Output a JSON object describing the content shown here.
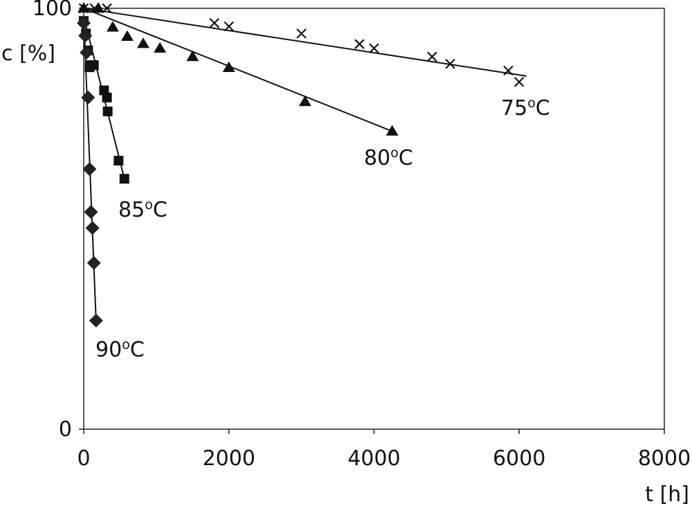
{
  "chart_data": {
    "type": "scatter",
    "title": "",
    "xlabel": "t [h]",
    "ylabel": "c [%]",
    "xlim": [
      0,
      8000
    ],
    "ylim": [
      0,
      100
    ],
    "x_ticks": [
      0,
      2000,
      4000,
      6000,
      8000
    ],
    "x_tick_labels": [
      "0",
      "2000",
      "4000",
      "6000",
      "8000"
    ],
    "y_ticks": [
      0,
      100
    ],
    "y_tick_labels": [
      "0",
      "100"
    ],
    "grid": false,
    "legend": "none",
    "series": [
      {
        "name": "75",
        "label_unit": "C",
        "label_sup": "o",
        "marker": "x",
        "points": [
          [
            0,
            100
          ],
          [
            150,
            100
          ],
          [
            320,
            100
          ],
          [
            1800,
            96.5
          ],
          [
            2000,
            95.7
          ],
          [
            3000,
            94
          ],
          [
            3800,
            91.5
          ],
          [
            4000,
            90.5
          ],
          [
            4800,
            88.5
          ],
          [
            5050,
            86.8
          ],
          [
            5850,
            85.2
          ],
          [
            6000,
            82.5
          ]
        ],
        "fit": [
          [
            0,
            100
          ],
          [
            6100,
            83.9
          ]
        ]
      },
      {
        "name": "80",
        "label_unit": "C",
        "label_sup": "o",
        "marker": "triangle",
        "points": [
          [
            0,
            100
          ],
          [
            200,
            100
          ],
          [
            400,
            95.5
          ],
          [
            600,
            93.3
          ],
          [
            820,
            91.6
          ],
          [
            1050,
            90.5
          ],
          [
            1500,
            88.5
          ],
          [
            2000,
            85.9
          ],
          [
            3050,
            77.8
          ],
          [
            4250,
            70.8
          ]
        ],
        "fit": [
          [
            0,
            100
          ],
          [
            4250,
            70.8
          ]
        ]
      },
      {
        "name": "85",
        "label_unit": "C",
        "label_sup": "o",
        "marker": "square",
        "points": [
          [
            0,
            97
          ],
          [
            30,
            94
          ],
          [
            60,
            90
          ],
          [
            80,
            86
          ],
          [
            100,
            86.5
          ],
          [
            140,
            86.5
          ],
          [
            280,
            80.5
          ],
          [
            320,
            78.8
          ],
          [
            330,
            75.5
          ],
          [
            480,
            63.8
          ],
          [
            560,
            59.5
          ]
        ],
        "fit": [
          [
            0,
            98
          ],
          [
            560,
            59.5
          ]
        ]
      },
      {
        "name": "90",
        "label_unit": "C",
        "label_sup": "o",
        "marker": "diamond",
        "points": [
          [
            0,
            96.5
          ],
          [
            20,
            93.5
          ],
          [
            40,
            89.5
          ],
          [
            60,
            78.8
          ],
          [
            80,
            61.8
          ],
          [
            100,
            51.6
          ],
          [
            120,
            47.8
          ],
          [
            140,
            39.5
          ],
          [
            170,
            25.8
          ]
        ],
        "fit": [
          [
            0,
            98
          ],
          [
            170,
            25.8
          ]
        ]
      }
    ]
  }
}
